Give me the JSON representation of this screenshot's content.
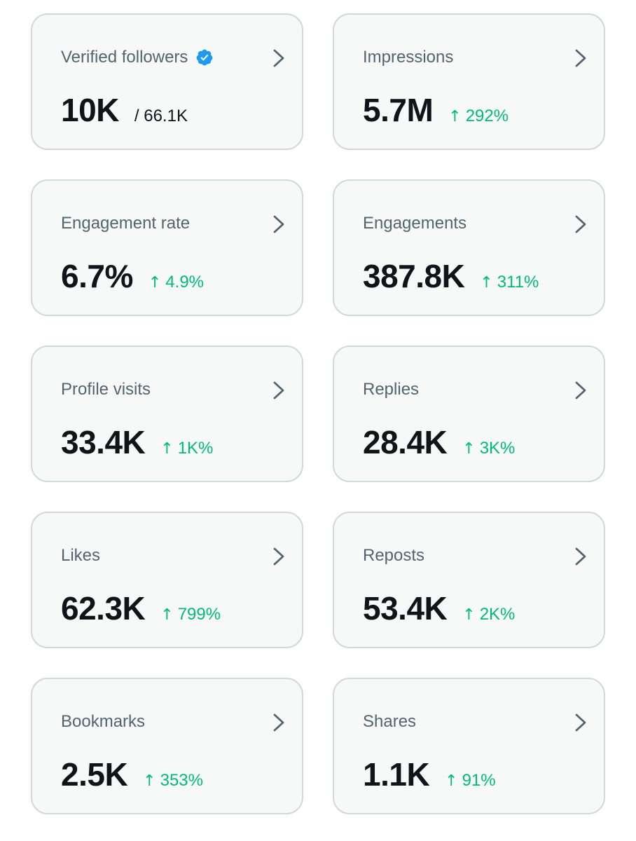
{
  "colors": {
    "card_background": "#f7f9f9",
    "card_border": "#cfd9de",
    "label_text": "#536471",
    "value_text": "#0f1419",
    "positive_change": "#00ba7c",
    "verified_badge": "#1d9bf0"
  },
  "icons": {
    "verified": "verified-badge-icon",
    "chevron": "chevron-right-icon",
    "trend": "arrow-up"
  },
  "arrow_glyph": "↑",
  "metrics": [
    {
      "label": "Verified followers",
      "value": "10K",
      "total": "/ 66.1K"
    },
    {
      "label": "Impressions",
      "value": "5.7M",
      "change": "292%"
    },
    {
      "label": "Engagement rate",
      "value": "6.7%",
      "change": "4.9%"
    },
    {
      "label": "Engagements",
      "value": "387.8K",
      "change": "311%"
    },
    {
      "label": "Profile visits",
      "value": "33.4K",
      "change": "1K%"
    },
    {
      "label": "Replies",
      "value": "28.4K",
      "change": "3K%"
    },
    {
      "label": "Likes",
      "value": "62.3K",
      "change": "799%"
    },
    {
      "label": "Reposts",
      "value": "53.4K",
      "change": "2K%"
    },
    {
      "label": "Bookmarks",
      "value": "2.5K",
      "change": "353%"
    },
    {
      "label": "Shares",
      "value": "1.1K",
      "change": "91%"
    }
  ]
}
